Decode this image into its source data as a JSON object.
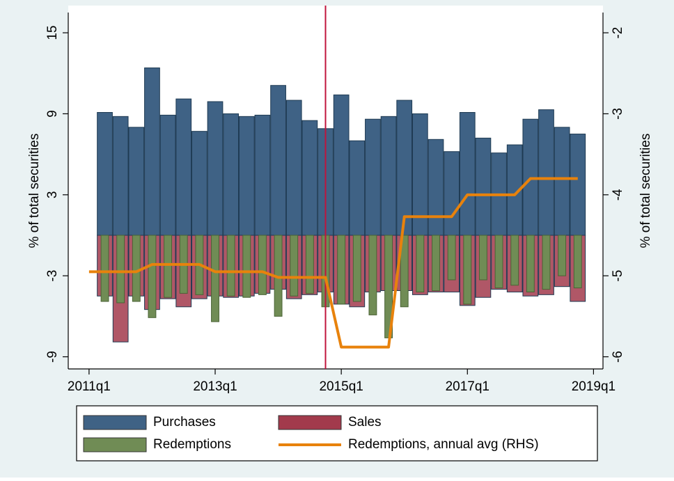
{
  "chart_data": {
    "type": "bar-line",
    "x": [
      2011.25,
      2011.5,
      2011.75,
      2012,
      2012.25,
      2012.5,
      2012.75,
      2013,
      2013.25,
      2013.5,
      2013.75,
      2014,
      2014.25,
      2014.5,
      2014.75,
      2015,
      2015.25,
      2015.5,
      2015.75,
      2016,
      2016.25,
      2016.5,
      2016.75,
      2017,
      2017.25,
      2017.5,
      2017.75,
      2018,
      2018.25,
      2018.5,
      2018.75
    ],
    "series": [
      {
        "name": "Purchases",
        "color": "#3f6285",
        "kind": "bar",
        "values": [
          9.1,
          8.8,
          8.0,
          12.4,
          8.9,
          10.1,
          7.7,
          9.9,
          9.0,
          8.8,
          8.9,
          11.1,
          10.0,
          8.5,
          7.9,
          10.4,
          7.0,
          8.6,
          8.8,
          10.0,
          9.0,
          7.1,
          6.2,
          9.1,
          7.2,
          6.1,
          6.7,
          8.6,
          9.3,
          8.0,
          7.5
        ]
      },
      {
        "name": "Sales",
        "color": "#a23a4c",
        "kind": "bar",
        "values": [
          -4.5,
          -7.9,
          -4.5,
          -5.5,
          -4.7,
          -5.3,
          -4.7,
          -4.5,
          -4.6,
          -4.5,
          -4.3,
          -4.0,
          -4.7,
          -4.4,
          -4.2,
          -5.1,
          -5.3,
          -4.2,
          -4.1,
          -4.1,
          -4.4,
          -4.2,
          -4.2,
          -5.2,
          -4.6,
          -4.0,
          -4.2,
          -4.5,
          -4.4,
          -3.8,
          -4.9
        ]
      },
      {
        "name": "Redemptions",
        "color": "#708c55",
        "kind": "narrow-bar",
        "values": [
          -4.9,
          -5.0,
          -4.9,
          -6.1,
          -4.6,
          -4.3,
          -4.4,
          -6.4,
          -4.5,
          -4.6,
          -4.4,
          -6.0,
          -4.5,
          -4.3,
          -5.3,
          -5.1,
          -4.9,
          -5.9,
          -7.6,
          -5.3,
          -4.2,
          -4.1,
          -3.3,
          -5.1,
          -3.3,
          -3.9,
          -3.7,
          -4.2,
          -4.0,
          -3.0,
          -3.9
        ]
      },
      {
        "name": "Redemptions, annual avg (RHS)",
        "color": "#e8820c",
        "kind": "line",
        "axis": "y2",
        "x": [
          2011,
          2011.25,
          2011.5,
          2011.75,
          2012,
          2012.25,
          2012.5,
          2012.75,
          2013,
          2013.25,
          2013.5,
          2013.75,
          2014,
          2014.25,
          2014.5,
          2014.75,
          2015,
          2015.25,
          2015.5,
          2015.75,
          2016,
          2016.25,
          2016.5,
          2016.75,
          2017,
          2017.25,
          2017.5,
          2017.75,
          2018,
          2018.25,
          2018.5,
          2018.75
        ],
        "values": [
          -4.95,
          -4.95,
          -4.95,
          -4.95,
          -4.86,
          -4.86,
          -4.86,
          -4.86,
          -4.95,
          -4.95,
          -4.95,
          -4.95,
          -5.02,
          -5.02,
          -5.02,
          -5.02,
          -5.88,
          -5.88,
          -5.88,
          -5.88,
          -4.27,
          -4.27,
          -4.27,
          -4.27,
          -4.0,
          -4.0,
          -4.0,
          -4.0,
          -3.8,
          -3.8,
          -3.8,
          -3.8
        ]
      }
    ],
    "vline": {
      "x": 2014.75,
      "color": "#c0143c"
    },
    "xlim": [
      2010.67,
      2019.15
    ],
    "xticks": [
      {
        "value": 2011,
        "label": "2011q1"
      },
      {
        "value": 2013,
        "label": "2013q1"
      },
      {
        "value": 2015,
        "label": "2015q1"
      },
      {
        "value": 2017,
        "label": "2017q1"
      },
      {
        "value": 2019,
        "label": "2019q1"
      }
    ],
    "ylim": [
      -9.9,
      16.5
    ],
    "yticks": [
      -9,
      -3,
      3,
      9,
      15
    ],
    "y2lim": [
      -6.15,
      -1.75
    ],
    "y2ticks": [
      -6,
      -5,
      -4,
      -3,
      -2
    ],
    "ylabel": "% of total securities",
    "y2label": "% of total securities",
    "grid": false
  }
}
